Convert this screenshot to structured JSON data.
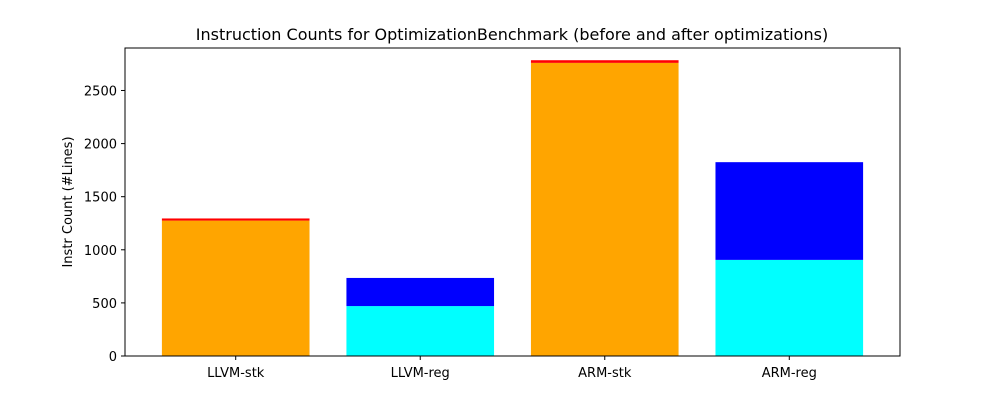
{
  "chart_data": {
    "type": "bar",
    "title": "Instruction Counts for OptimizationBenchmark (before and after optimizations)",
    "xlabel": "",
    "ylabel": "Instr Count (#Lines)",
    "categories": [
      "LLVM-stk",
      "LLVM-reg",
      "ARM-stk",
      "ARM-reg"
    ],
    "ylim": [
      0,
      2900
    ],
    "yticks": [
      0,
      500,
      1000,
      1500,
      2000,
      2500
    ],
    "grid": false,
    "legend": "none",
    "stacked": true,
    "bars": [
      {
        "category": "LLVM-stk",
        "segments": [
          {
            "value": 1275,
            "color": "#ffa500"
          },
          {
            "value": 20,
            "color": "#ff0000"
          }
        ]
      },
      {
        "category": "LLVM-reg",
        "segments": [
          {
            "value": 470,
            "color": "#00ffff"
          },
          {
            "value": 265,
            "color": "#0000ff"
          }
        ]
      },
      {
        "category": "ARM-stk",
        "segments": [
          {
            "value": 2760,
            "color": "#ffa500"
          },
          {
            "value": 25,
            "color": "#ff0000"
          }
        ]
      },
      {
        "category": "ARM-reg",
        "segments": [
          {
            "value": 905,
            "color": "#00ffff"
          },
          {
            "value": 920,
            "color": "#0000ff"
          }
        ]
      }
    ]
  }
}
